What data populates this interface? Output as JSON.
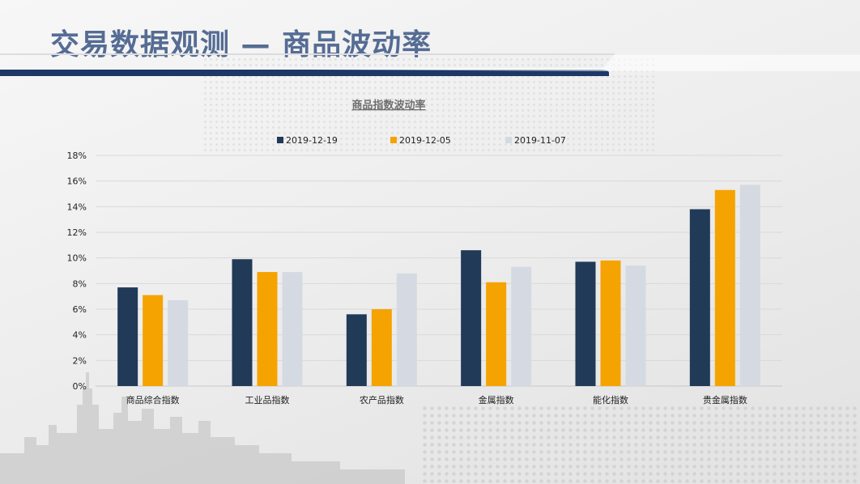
{
  "slide": {
    "title": "交易数据观测 — 商品波动率"
  },
  "colors": {
    "title": "#556c94",
    "band": "#1d3766",
    "series": [
      "#203a58",
      "#f5a300",
      "#d5dae2"
    ]
  },
  "chart_data": {
    "type": "bar",
    "title": "商品指数波动率",
    "categories": [
      "商品综合指数",
      "工业品指数",
      "农产品指数",
      "金属指数",
      "能化指数",
      "贵金属指数"
    ],
    "series": [
      {
        "name": "2019-12-19",
        "values": [
          7.7,
          9.9,
          5.6,
          10.6,
          9.7,
          13.8
        ]
      },
      {
        "name": "2019-12-05",
        "values": [
          7.1,
          8.9,
          6.0,
          8.1,
          9.8,
          15.3
        ]
      },
      {
        "name": "2019-11-07",
        "values": [
          6.7,
          8.9,
          8.8,
          9.3,
          9.4,
          15.7
        ]
      }
    ],
    "yticks": [
      "0%",
      "2%",
      "4%",
      "6%",
      "8%",
      "10%",
      "12%",
      "14%",
      "16%",
      "18%"
    ],
    "ylim": [
      0,
      18
    ],
    "legend_position": "top",
    "grid": true
  }
}
